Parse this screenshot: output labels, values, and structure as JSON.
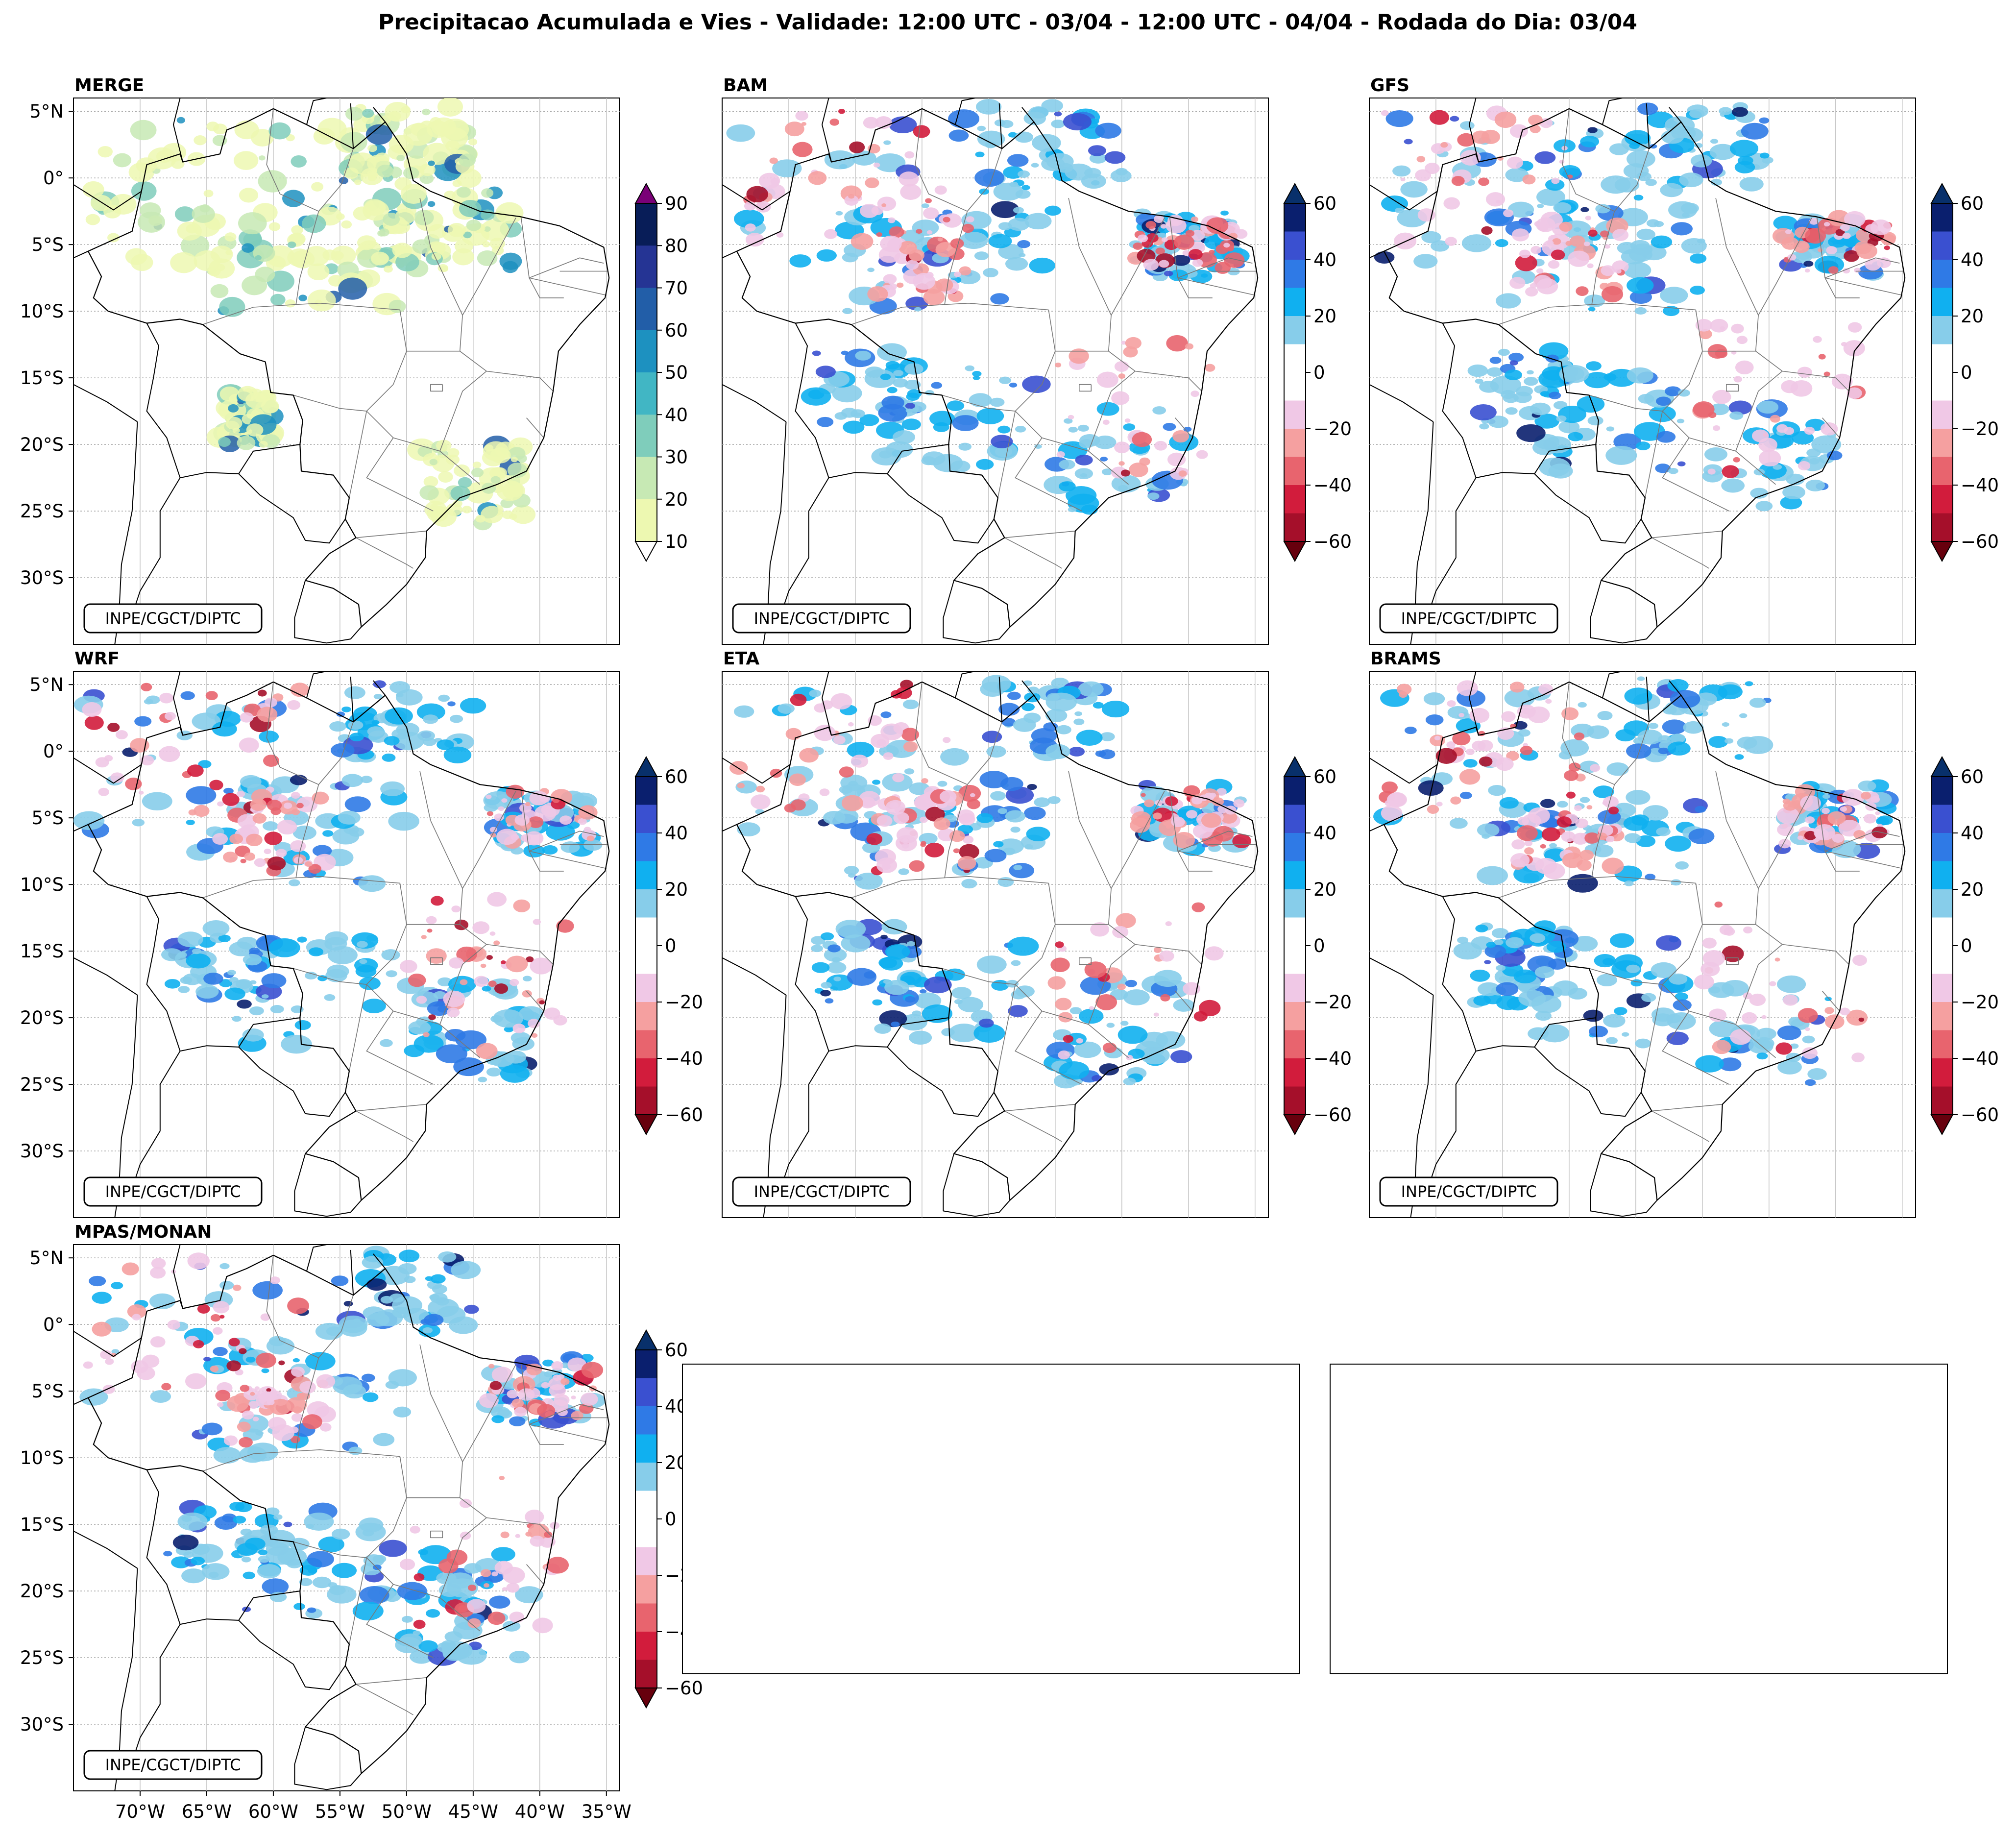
{
  "figure": {
    "title": "Precipitacao Acumulada e Vies - Validade: 12:00 UTC - 03/04 - 12:00 UTC - 04/04 - Rodada do Dia: 03/04",
    "credit": "INPE/CGCT/DIPTC"
  },
  "chart_data": {
    "type": "heatmap",
    "region": "Brazil",
    "lon_range": [
      -75,
      -34
    ],
    "lat_range": [
      -35,
      6
    ],
    "lat_ticks": [
      "5°N",
      "0°",
      "5°S",
      "10°S",
      "15°S",
      "20°S",
      "25°S",
      "30°S"
    ],
    "lon_ticks": [
      "70°W",
      "65°W",
      "60°W",
      "55°W",
      "50°W",
      "45°W",
      "40°W",
      "35°W"
    ],
    "merge_colorbar": {
      "label_values": [
        "10",
        "20",
        "30",
        "40",
        "50",
        "60",
        "70",
        "80",
        "90"
      ],
      "colors": [
        "#edf8b1",
        "#c7e9b4",
        "#7fcdbb",
        "#41b6c4",
        "#1d91c0",
        "#225ea8",
        "#253494",
        "#081d58"
      ],
      "extend_low": "#ffffff",
      "extend_high": "#7a0177"
    },
    "bias_colorbar": {
      "label_values": [
        "60",
        "40",
        "20",
        "0",
        "−20",
        "−40",
        "−60"
      ],
      "colors_top_to_bottom": [
        "#0a1f6e",
        "#3a50d0",
        "#2f7ae6",
        "#10b0f0",
        "#87cdea",
        "#ffffff",
        "#ffffff",
        "#f0c8e6",
        "#f5a0a0",
        "#e8646e",
        "#d21c3c",
        "#a50f2a"
      ],
      "extend_high": "#08306b",
      "extend_low": "#67000d"
    },
    "panels": [
      {
        "title": "MERGE",
        "kind": "precipitation"
      },
      {
        "title": "BAM",
        "kind": "bias"
      },
      {
        "title": "GFS",
        "kind": "bias"
      },
      {
        "title": "WRF",
        "kind": "bias"
      },
      {
        "title": "ETA",
        "kind": "bias"
      },
      {
        "title": "BRAMS",
        "kind": "bias"
      },
      {
        "title": "MPAS/MONAN",
        "kind": "bias"
      }
    ]
  }
}
